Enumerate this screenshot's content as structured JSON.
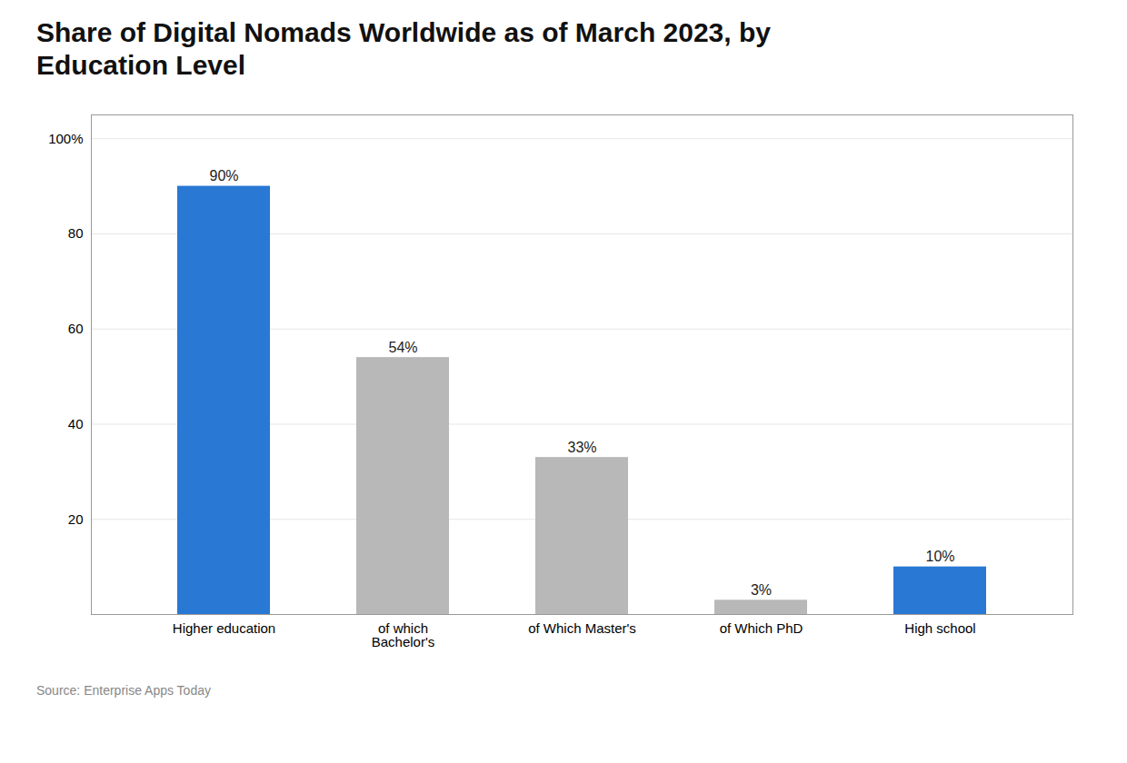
{
  "chart_data": {
    "type": "bar",
    "title": "Share of Digital Nomads Worldwide as of March 2023, by\nEducation Level",
    "caption": "Source: Enterprise Apps Today",
    "categories": [
      "Higher education",
      "of which\nBachelor's",
      "of Which Master's",
      "of Which PhD",
      "High school"
    ],
    "values": [
      90,
      54,
      33,
      3,
      10
    ],
    "value_labels": [
      "90%",
      "54%",
      "33%",
      "3%",
      "10%"
    ],
    "colors": [
      "#2878d4",
      "#b8b8b8",
      "#b8b8b8",
      "#b8b8b8",
      "#2878d4"
    ],
    "ylim": [
      0,
      105
    ],
    "yticks": [
      {
        "value": 0,
        "label": ""
      },
      20,
      40,
      60,
      80,
      {
        "value": 100,
        "label": "100%"
      }
    ],
    "grid": true,
    "data_labels": true
  }
}
